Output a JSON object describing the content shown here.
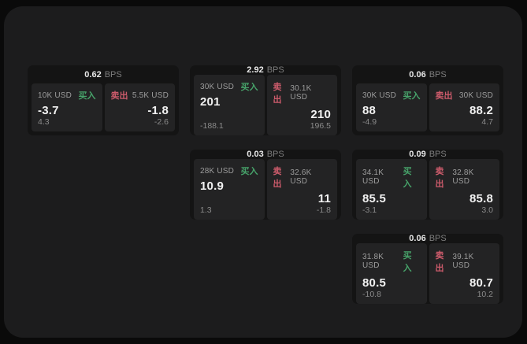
{
  "labels": {
    "bps_unit": "BPS",
    "buy": "买入",
    "sell": "卖出"
  },
  "colors": {
    "background": "#0a0a0a",
    "container": "#1c1c1d",
    "card": "#141414",
    "panel": "#232324",
    "buy_green": "#47a36a",
    "sell_red": "#cc5b6b"
  },
  "cards": [
    {
      "bps": "0.62",
      "buy": {
        "amount": "10K USD",
        "price": "-3.7",
        "delta": "4.3"
      },
      "sell": {
        "amount": "5.5K USD",
        "price": "-1.8",
        "delta": "-2.6"
      }
    },
    {
      "bps": "2.92",
      "buy": {
        "amount": "30K USD",
        "price": "201",
        "delta": "-188.1"
      },
      "sell": {
        "amount": "30.1K USD",
        "price": "210",
        "delta": "196.5"
      }
    },
    {
      "bps": "0.06",
      "buy": {
        "amount": "30K USD",
        "price": "88",
        "delta": "-4.9"
      },
      "sell": {
        "amount": "30K USD",
        "price": "88.2",
        "delta": "4.7"
      }
    },
    {
      "bps": "0.03",
      "buy": {
        "amount": "28K USD",
        "price": "10.9",
        "delta": "1.3"
      },
      "sell": {
        "amount": "32.6K USD",
        "price": "11",
        "delta": "-1.8"
      }
    },
    {
      "bps": "0.09",
      "buy": {
        "amount": "34.1K USD",
        "price": "85.5",
        "delta": "-3.1"
      },
      "sell": {
        "amount": "32.8K USD",
        "price": "85.8",
        "delta": "3.0"
      }
    },
    {
      "bps": "0.06",
      "buy": {
        "amount": "31.8K USD",
        "price": "80.5",
        "delta": "-10.8"
      },
      "sell": {
        "amount": "39.1K USD",
        "price": "80.7",
        "delta": "10.2"
      }
    }
  ]
}
